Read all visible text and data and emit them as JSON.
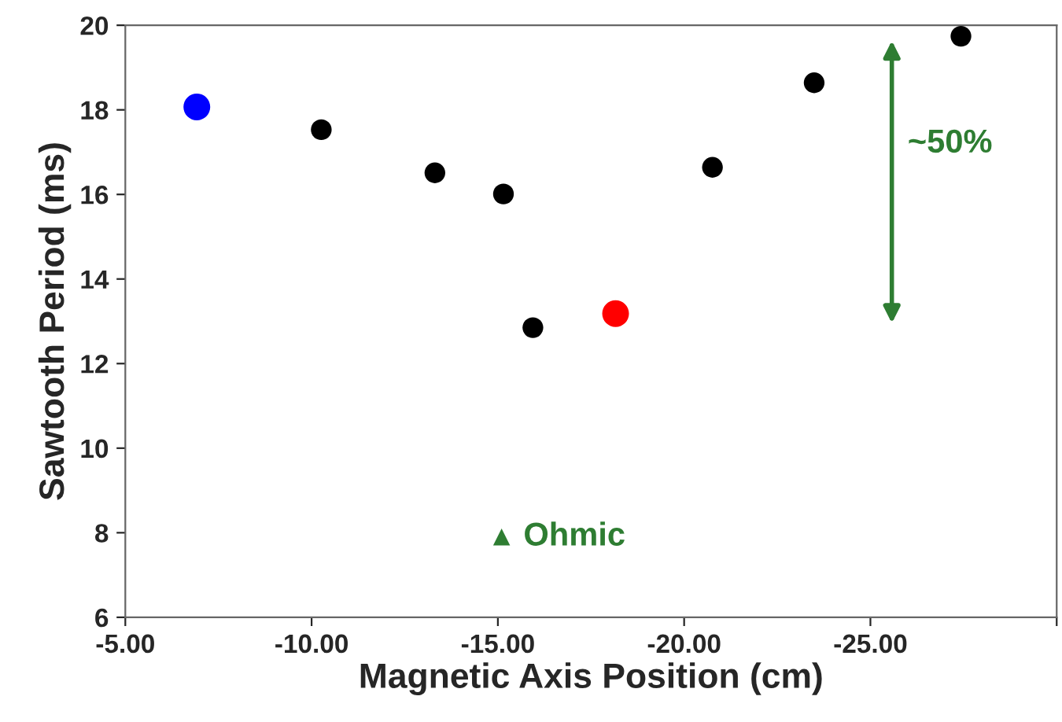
{
  "chart_data": {
    "type": "scatter",
    "xlabel": "Magnetic Axis Position (cm)",
    "ylabel": "Sawtooth Period (ms)",
    "xlim": [
      -5,
      -30
    ],
    "xticks": [
      {
        "value": -5,
        "label": "-5.00"
      },
      {
        "value": -10,
        "label": "-10.00"
      },
      {
        "value": -15,
        "label": "-15.00"
      },
      {
        "value": -20,
        "label": "-20.00"
      },
      {
        "value": -25,
        "label": "-25.00"
      },
      {
        "value": -30,
        "label": null
      }
    ],
    "ylim": [
      6,
      20
    ],
    "yticks": [
      6,
      8,
      10,
      12,
      14,
      16,
      18,
      20
    ],
    "grid": false,
    "legend": false,
    "series": [
      {
        "color": "#0000ff",
        "marker": "circle",
        "x": [
          -6.92
        ],
        "values": [
          18.07
        ]
      },
      {
        "color": "#000000",
        "marker": "circle",
        "x": [
          -10.26,
          -13.31,
          -15.15,
          -15.94,
          -20.76,
          -23.49,
          -27.43
        ],
        "values": [
          17.53,
          16.51,
          16.01,
          12.85,
          16.64,
          18.64,
          19.74
        ]
      },
      {
        "color": "#ff0000",
        "marker": "circle",
        "x": [
          -18.16
        ],
        "values": [
          13.18
        ]
      },
      {
        "name": "Ohmic",
        "color": "#2e7d32",
        "marker": "triangle",
        "x": [
          -15.1
        ],
        "values": [
          7.9
        ]
      }
    ],
    "annotations": [
      "~50%"
    ]
  }
}
